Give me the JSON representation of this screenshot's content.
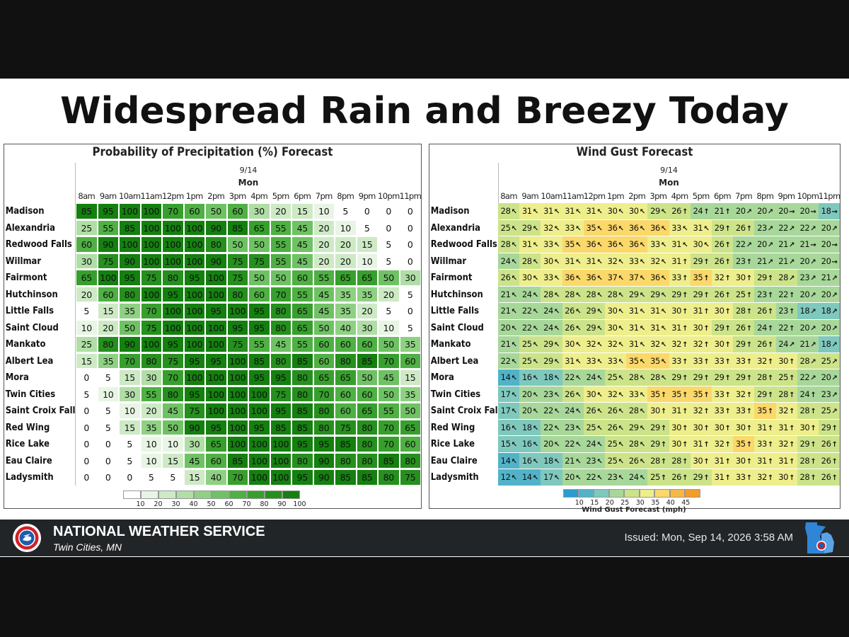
{
  "headline": "Widespread Rain and Breezy Today",
  "date": "9/14",
  "day": "Mon",
  "hours": [
    "8am",
    "9am",
    "10am",
    "11am",
    "12pm",
    "1pm",
    "2pm",
    "3pm",
    "4pm",
    "5pm",
    "6pm",
    "7pm",
    "8pm",
    "9pm",
    "10pm",
    "11pm"
  ],
  "cities": [
    "Madison",
    "Alexandria",
    "Redwood Falls",
    "Willmar",
    "Fairmont",
    "Hutchinson",
    "Little Falls",
    "Saint Cloud",
    "Mankato",
    "Albert Lea",
    "Mora",
    "Twin Cities",
    "Saint Croix Falls",
    "Red Wing",
    "Rice Lake",
    "Eau Claire",
    "Ladysmith"
  ],
  "pop_panel": {
    "title": "Probability of Precipitation (%) Forecast",
    "legend_ticks": [
      "10",
      "20",
      "30",
      "40",
      "50",
      "60",
      "70",
      "80",
      "90",
      "100"
    ],
    "legend_colors": [
      "#ffffff",
      "#e8f5e4",
      "#cdeac5",
      "#b0dea6",
      "#8fd183",
      "#6fc263",
      "#4fb043",
      "#37a02d",
      "#25901d",
      "#14800f"
    ]
  },
  "wind_panel": {
    "title": "Wind Gust Forecast",
    "legend_ticks": [
      "10",
      "15",
      "20",
      "25",
      "30",
      "35",
      "40",
      "45"
    ],
    "legend_title": "Wind Gust Forecast (mph)",
    "legend_colors": [
      "#2b9bd0",
      "#52b3c8",
      "#7fc8bd",
      "#a8d79a",
      "#cce38a",
      "#eeee8c",
      "#fbd86a",
      "#f6b845",
      "#f39c2c"
    ]
  },
  "chart_data": [
    {
      "type": "heatmap",
      "title": "Probability of Precipitation (%) Forecast",
      "x": [
        "8am",
        "9am",
        "10am",
        "11am",
        "12pm",
        "1pm",
        "2pm",
        "3pm",
        "4pm",
        "5pm",
        "6pm",
        "7pm",
        "8pm",
        "9pm",
        "10pm",
        "11pm"
      ],
      "y": [
        "Madison",
        "Alexandria",
        "Redwood Falls",
        "Willmar",
        "Fairmont",
        "Hutchinson",
        "Little Falls",
        "Saint Cloud",
        "Mankato",
        "Albert Lea",
        "Mora",
        "Twin Cities",
        "Saint Croix Falls",
        "Red Wing",
        "Rice Lake",
        "Eau Claire",
        "Ladysmith"
      ],
      "values": [
        [
          85,
          95,
          100,
          100,
          70,
          60,
          50,
          60,
          30,
          20,
          15,
          10,
          5,
          0,
          0,
          0
        ],
        [
          25,
          55,
          85,
          100,
          100,
          100,
          90,
          85,
          65,
          55,
          45,
          20,
          10,
          5,
          0,
          0
        ],
        [
          60,
          90,
          100,
          100,
          100,
          100,
          80,
          50,
          50,
          55,
          45,
          20,
          20,
          15,
          5,
          0
        ],
        [
          30,
          75,
          90,
          100,
          100,
          100,
          90,
          75,
          75,
          55,
          45,
          20,
          20,
          10,
          5,
          0
        ],
        [
          65,
          100,
          95,
          75,
          80,
          95,
          100,
          75,
          50,
          50,
          60,
          55,
          65,
          65,
          50,
          30
        ],
        [
          20,
          60,
          80,
          100,
          95,
          100,
          100,
          80,
          60,
          70,
          55,
          45,
          35,
          35,
          20,
          5
        ],
        [
          5,
          15,
          35,
          70,
          100,
          100,
          95,
          100,
          95,
          80,
          65,
          45,
          35,
          20,
          5,
          0
        ],
        [
          10,
          20,
          50,
          75,
          100,
          100,
          100,
          95,
          95,
          80,
          65,
          50,
          40,
          30,
          10,
          5
        ],
        [
          25,
          80,
          90,
          100,
          95,
          100,
          100,
          75,
          55,
          45,
          55,
          60,
          60,
          60,
          50,
          35
        ],
        [
          15,
          35,
          70,
          80,
          75,
          95,
          95,
          100,
          85,
          80,
          85,
          60,
          80,
          85,
          70,
          60
        ],
        [
          0,
          5,
          15,
          30,
          70,
          100,
          100,
          100,
          95,
          95,
          80,
          65,
          65,
          50,
          45,
          15
        ],
        [
          5,
          10,
          30,
          55,
          80,
          95,
          100,
          100,
          100,
          75,
          80,
          70,
          60,
          60,
          50,
          35
        ],
        [
          0,
          5,
          10,
          20,
          45,
          75,
          100,
          100,
          100,
          95,
          85,
          80,
          60,
          65,
          55,
          50
        ],
        [
          0,
          5,
          15,
          35,
          50,
          90,
          95,
          100,
          95,
          85,
          85,
          80,
          75,
          80,
          70,
          65
        ],
        [
          0,
          0,
          5,
          10,
          10,
          30,
          65,
          100,
          100,
          100,
          95,
          95,
          85,
          80,
          70,
          60
        ],
        [
          0,
          0,
          5,
          10,
          15,
          45,
          60,
          85,
          100,
          100,
          80,
          90,
          80,
          80,
          85,
          80
        ],
        [
          0,
          0,
          0,
          5,
          5,
          15,
          40,
          70,
          100,
          100,
          95,
          90,
          85,
          85,
          80,
          75
        ]
      ]
    },
    {
      "type": "heatmap",
      "title": "Wind Gust Forecast",
      "x": [
        "8am",
        "9am",
        "10am",
        "11am",
        "12pm",
        "1pm",
        "2pm",
        "3pm",
        "4pm",
        "5pm",
        "6pm",
        "7pm",
        "8pm",
        "9pm",
        "10pm",
        "11pm"
      ],
      "y": [
        "Madison",
        "Alexandria",
        "Redwood Falls",
        "Willmar",
        "Fairmont",
        "Hutchinson",
        "Little Falls",
        "Saint Cloud",
        "Mankato",
        "Albert Lea",
        "Mora",
        "Twin Cities",
        "Saint Croix Falls",
        "Red Wing",
        "Rice Lake",
        "Eau Claire",
        "Ladysmith"
      ],
      "values": [
        [
          28,
          31,
          31,
          31,
          31,
          30,
          30,
          29,
          26,
          24,
          21,
          20,
          20,
          20,
          20,
          18
        ],
        [
          25,
          29,
          32,
          33,
          35,
          36,
          36,
          36,
          33,
          31,
          29,
          26,
          23,
          22,
          22,
          20
        ],
        [
          28,
          31,
          33,
          35,
          36,
          36,
          36,
          33,
          31,
          30,
          26,
          22,
          20,
          21,
          21,
          20
        ],
        [
          24,
          28,
          30,
          31,
          31,
          32,
          33,
          32,
          31,
          29,
          26,
          23,
          21,
          21,
          20,
          20
        ],
        [
          26,
          30,
          33,
          36,
          36,
          37,
          37,
          36,
          33,
          35,
          32,
          30,
          29,
          28,
          23,
          21
        ],
        [
          21,
          24,
          28,
          28,
          28,
          28,
          29,
          29,
          29,
          29,
          26,
          25,
          23,
          22,
          20,
          20
        ],
        [
          21,
          22,
          24,
          26,
          29,
          30,
          31,
          31,
          30,
          31,
          30,
          28,
          26,
          23,
          18,
          18
        ],
        [
          20,
          22,
          24,
          26,
          29,
          30,
          31,
          31,
          31,
          30,
          29,
          26,
          24,
          22,
          20,
          20
        ],
        [
          21,
          25,
          29,
          30,
          32,
          32,
          31,
          32,
          32,
          32,
          30,
          29,
          26,
          24,
          21,
          18
        ],
        [
          22,
          25,
          29,
          31,
          33,
          33,
          35,
          35,
          33,
          33,
          33,
          33,
          32,
          30,
          28,
          25
        ],
        [
          14,
          16,
          18,
          22,
          24,
          25,
          28,
          28,
          29,
          29,
          29,
          29,
          28,
          25,
          22,
          20
        ],
        [
          17,
          20,
          23,
          26,
          30,
          32,
          33,
          35,
          35,
          35,
          33,
          32,
          29,
          28,
          24,
          23
        ],
        [
          17,
          20,
          22,
          24,
          26,
          26,
          28,
          30,
          31,
          32,
          33,
          33,
          35,
          32,
          28,
          25
        ],
        [
          16,
          18,
          22,
          23,
          25,
          26,
          29,
          29,
          30,
          30,
          30,
          30,
          31,
          31,
          30,
          29
        ],
        [
          15,
          16,
          20,
          22,
          24,
          25,
          28,
          29,
          30,
          31,
          32,
          35,
          33,
          32,
          29,
          26
        ],
        [
          14,
          16,
          18,
          21,
          23,
          25,
          26,
          28,
          28,
          30,
          31,
          30,
          31,
          31,
          28,
          26
        ],
        [
          12,
          14,
          17,
          20,
          22,
          23,
          24,
          25,
          26,
          29,
          31,
          33,
          32,
          30,
          28,
          26
        ]
      ],
      "directions": [
        [
          "NW",
          "NW",
          "NW",
          "NW",
          "NW",
          "NW",
          "NW",
          "NW",
          "N",
          "N",
          "N",
          "NE",
          "NE",
          "E",
          "E",
          "E"
        ],
        [
          "NW",
          "NW",
          "NW",
          "NW",
          "NW",
          "NW",
          "NW",
          "NW",
          "NW",
          "NW",
          "N",
          "N",
          "NE",
          "NE",
          "NE",
          "NE"
        ],
        [
          "NW",
          "NW",
          "NW",
          "NW",
          "NW",
          "NW",
          "NW",
          "NW",
          "NW",
          "NW",
          "N",
          "NE",
          "NE",
          "NE",
          "E",
          "E"
        ],
        [
          "NW",
          "NW",
          "NW",
          "NW",
          "NW",
          "NW",
          "NW",
          "NW",
          "N",
          "N",
          "N",
          "N",
          "NE",
          "NE",
          "NE",
          "E"
        ],
        [
          "NW",
          "NW",
          "NW",
          "NW",
          "NW",
          "NW",
          "NW",
          "NW",
          "N",
          "N",
          "N",
          "N",
          "N",
          "NE",
          "NE",
          "NE"
        ],
        [
          "NW",
          "NW",
          "NW",
          "NW",
          "NW",
          "NW",
          "NW",
          "NW",
          "N",
          "N",
          "N",
          "N",
          "N",
          "N",
          "NE",
          "NE"
        ],
        [
          "NW",
          "NW",
          "NW",
          "NW",
          "NW",
          "NW",
          "NW",
          "NW",
          "N",
          "N",
          "N",
          "N",
          "N",
          "N",
          "NE",
          "NE"
        ],
        [
          "NW",
          "NW",
          "NW",
          "NW",
          "NW",
          "NW",
          "NW",
          "NW",
          "N",
          "N",
          "N",
          "N",
          "N",
          "N",
          "NE",
          "NE"
        ],
        [
          "NW",
          "NW",
          "NW",
          "NW",
          "NW",
          "NW",
          "NW",
          "NW",
          "N",
          "N",
          "N",
          "N",
          "N",
          "NE",
          "NE",
          "NE"
        ],
        [
          "NW",
          "NW",
          "NW",
          "NW",
          "NW",
          "NW",
          "NW",
          "NW",
          "N",
          "N",
          "N",
          "N",
          "N",
          "N",
          "NE",
          "NE"
        ],
        [
          "NW",
          "NW",
          "NW",
          "NW",
          "NW",
          "NW",
          "NW",
          "NW",
          "N",
          "N",
          "N",
          "N",
          "N",
          "N",
          "NE",
          "NE"
        ],
        [
          "NW",
          "NW",
          "NW",
          "NW",
          "NW",
          "NW",
          "NW",
          "N",
          "N",
          "N",
          "N",
          "N",
          "N",
          "N",
          "N",
          "NE"
        ],
        [
          "NW",
          "NW",
          "NW",
          "NW",
          "NW",
          "NW",
          "NW",
          "N",
          "N",
          "N",
          "N",
          "N",
          "N",
          "N",
          "N",
          "NE"
        ],
        [
          "NW",
          "NW",
          "NW",
          "NW",
          "NW",
          "NW",
          "NW",
          "N",
          "N",
          "N",
          "N",
          "N",
          "N",
          "N",
          "N",
          "N"
        ],
        [
          "NW",
          "NW",
          "NW",
          "NW",
          "NW",
          "NW",
          "NW",
          "N",
          "N",
          "N",
          "N",
          "N",
          "N",
          "N",
          "N",
          "N"
        ],
        [
          "NW",
          "NW",
          "NW",
          "NW",
          "NW",
          "NW",
          "NW",
          "N",
          "N",
          "N",
          "N",
          "N",
          "N",
          "N",
          "N",
          "N"
        ],
        [
          "NW",
          "NW",
          "NW",
          "NW",
          "NW",
          "NW",
          "NW",
          "N",
          "N",
          "N",
          "N",
          "N",
          "N",
          "N",
          "N",
          "N"
        ]
      ]
    }
  ],
  "footer": {
    "agency": "NATIONAL WEATHER SERVICE",
    "office": "Twin Cities, MN",
    "issued": "Issued: Mon, Sep 14, 2026 3:58 AM"
  }
}
